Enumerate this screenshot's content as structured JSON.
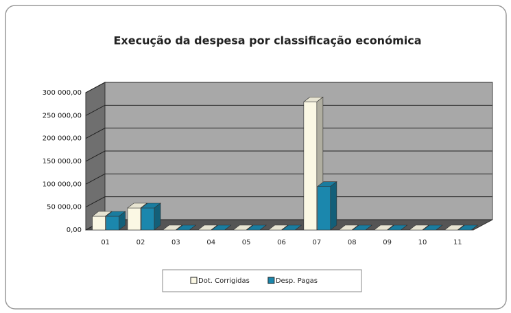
{
  "chart_data": {
    "type": "bar3d",
    "title": "Execução da despesa por classificação económica",
    "categories": [
      "01",
      "02",
      "03",
      "04",
      "05",
      "06",
      "07",
      "08",
      "09",
      "10",
      "11"
    ],
    "series": [
      {
        "name": "Dot. Corrigidas",
        "color": "#fbf8e4",
        "values": [
          30000,
          48000,
          0,
          0,
          0,
          0,
          280000,
          0,
          0,
          0,
          0
        ]
      },
      {
        "name": "Desp. Pagas",
        "color": "#1b87ad",
        "values": [
          30000,
          48000,
          0,
          0,
          0,
          0,
          95000,
          0,
          0,
          0,
          0
        ]
      }
    ],
    "ylim": [
      0,
      300000
    ],
    "yticks": [
      {
        "value": 0,
        "label": "0,00"
      },
      {
        "value": 50000,
        "label": "50 000,00"
      },
      {
        "value": 100000,
        "label": "100 000,00"
      },
      {
        "value": 150000,
        "label": "150 000,00"
      },
      {
        "value": 200000,
        "label": "200 000,00"
      },
      {
        "value": 250000,
        "label": "250 000,00"
      },
      {
        "value": 300000,
        "label": "300 000,00"
      }
    ],
    "grid": true
  }
}
